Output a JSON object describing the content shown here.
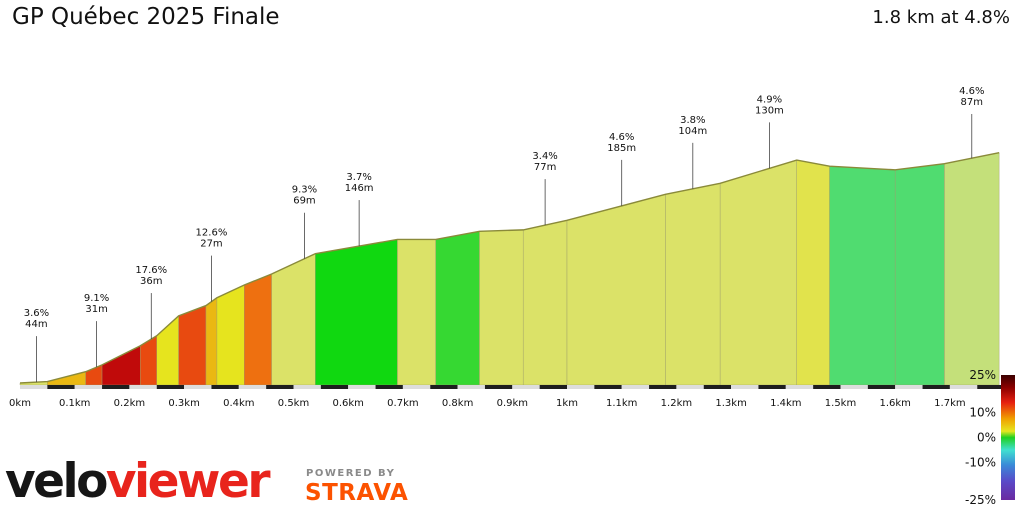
{
  "title": "GP Québec 2025 Finale",
  "summary": "1.8 km at 4.8%",
  "brand": {
    "name_part1": "velo",
    "name_part2": "viewer",
    "powered_by": "POWERED BY",
    "strava": "STRAVA"
  },
  "colors": {
    "brand_red": "#e8241c",
    "strava_orange": "#fc5200",
    "profile_outline": "#8a8a3a"
  },
  "chart_data": {
    "type": "area",
    "xlabel": "",
    "ylabel": "",
    "xlim": [
      0,
      1.8
    ],
    "x_ticks": [
      "0km",
      "0.1km",
      "0.2km",
      "0.3km",
      "0.4km",
      "0.5km",
      "0.6km",
      "0.7km",
      "0.8km",
      "0.9km",
      "1km",
      "1.1km",
      "1.2km",
      "1.3km",
      "1.4km",
      "1.5km",
      "1.6km",
      "1.7km"
    ],
    "elevation_points": [
      {
        "x": 0.0,
        "y": 0.0
      },
      {
        "x": 0.05,
        "y": 0.6
      },
      {
        "x": 0.12,
        "y": 4.6
      },
      {
        "x": 0.15,
        "y": 7.4
      },
      {
        "x": 0.22,
        "y": 15.2
      },
      {
        "x": 0.25,
        "y": 19.3
      },
      {
        "x": 0.29,
        "y": 27.4
      },
      {
        "x": 0.34,
        "y": 31.6
      },
      {
        "x": 0.36,
        "y": 34.8
      },
      {
        "x": 0.41,
        "y": 40.0
      },
      {
        "x": 0.46,
        "y": 44.5
      },
      {
        "x": 0.54,
        "y": 52.8
      },
      {
        "x": 0.69,
        "y": 58.6
      },
      {
        "x": 0.76,
        "y": 58.6
      },
      {
        "x": 0.84,
        "y": 61.9
      },
      {
        "x": 0.92,
        "y": 62.5
      },
      {
        "x": 1.0,
        "y": 66.4
      },
      {
        "x": 1.18,
        "y": 77.0
      },
      {
        "x": 1.28,
        "y": 81.5
      },
      {
        "x": 1.42,
        "y": 91.0
      },
      {
        "x": 1.48,
        "y": 88.5
      },
      {
        "x": 1.6,
        "y": 87.0
      },
      {
        "x": 1.69,
        "y": 89.5
      },
      {
        "x": 1.79,
        "y": 94.0
      }
    ],
    "segment_grades": [
      3.5,
      9.1,
      13.0,
      17.6,
      14.0,
      8.0,
      16.0,
      9.0,
      7.0,
      10.4,
      3.7,
      -8.0,
      4.0,
      -5.0,
      4.0,
      3.4,
      3.4,
      3.8,
      3.8,
      4.9,
      -3.5,
      -2.5,
      1.5,
      3.5
    ],
    "annotations": [
      {
        "x": 0.03,
        "grade": "3.6%",
        "length": "44m"
      },
      {
        "x": 0.14,
        "grade": "9.1%",
        "length": "31m"
      },
      {
        "x": 0.24,
        "grade": "17.6%",
        "length": "36m"
      },
      {
        "x": 0.35,
        "grade": "12.6%",
        "length": "27m"
      },
      {
        "x": 0.52,
        "grade": "9.3%",
        "length": "69m"
      },
      {
        "x": 0.62,
        "grade": "3.7%",
        "length": "146m"
      },
      {
        "x": 0.96,
        "grade": "3.4%",
        "length": "77m"
      },
      {
        "x": 1.1,
        "grade": "4.6%",
        "length": "185m"
      },
      {
        "x": 1.23,
        "grade": "3.8%",
        "length": "104m"
      },
      {
        "x": 1.37,
        "grade": "4.9%",
        "length": "130m"
      },
      {
        "x": 1.74,
        "grade": "4.6%",
        "length": "87m"
      }
    ],
    "color_scale": {
      "range": [
        -25,
        25
      ],
      "tick_labels": [
        "25%",
        "10%",
        "0%",
        "-10%",
        "-25%"
      ],
      "tick_values": [
        25,
        10,
        0,
        -10,
        -25
      ]
    }
  }
}
